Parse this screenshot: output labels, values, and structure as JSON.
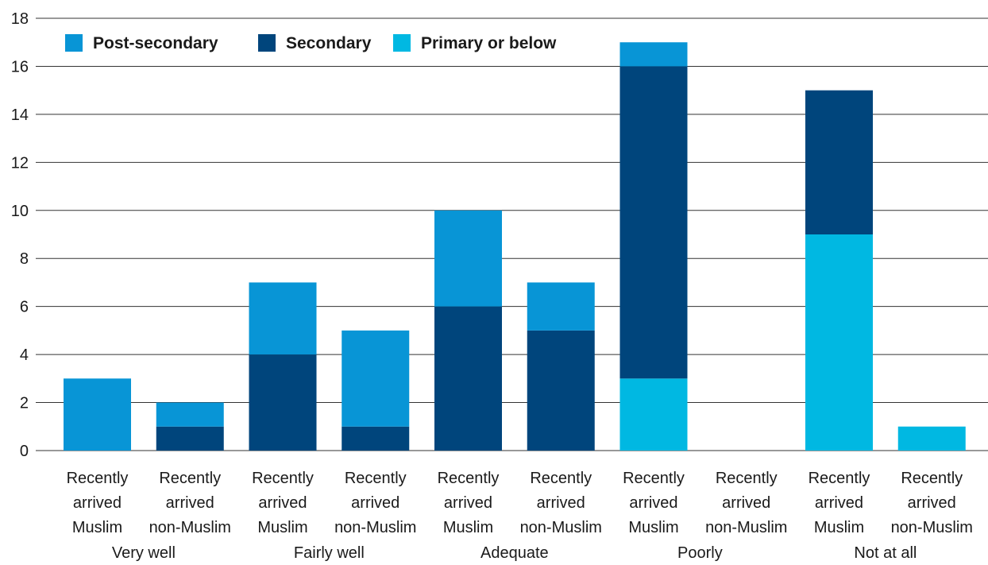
{
  "chart_data": {
    "type": "bar",
    "stacked": true,
    "ylim": [
      0,
      18
    ],
    "yticks": [
      0,
      2,
      4,
      6,
      8,
      10,
      12,
      14,
      16,
      18
    ],
    "grid": true,
    "legend_position": "top-left",
    "groups": [
      "Very well",
      "Fairly well",
      "Adequate",
      "Poorly",
      "Not at all"
    ],
    "categories": [
      "Recently arrived Muslim",
      "Recently arrived non-Muslim",
      "Recently arrived Muslim",
      "Recently arrived non-Muslim",
      "Recently arrived Muslim",
      "Recently arrived non-Muslim",
      "Recently arrived Muslim",
      "Recently arrived non-Muslim",
      "Recently arrived Muslim",
      "Recently arrived non-Muslim"
    ],
    "category_lines": [
      [
        "Recently",
        "arrived",
        "Muslim"
      ],
      [
        "Recently",
        "arrived",
        "non-Muslim"
      ]
    ],
    "series": [
      {
        "name": "Primary or below",
        "color": "#00b8e2",
        "values": [
          0,
          0,
          0,
          0,
          0,
          0,
          3,
          0,
          9,
          1
        ]
      },
      {
        "name": "Secondary",
        "color": "#00457c",
        "values": [
          0,
          1,
          4,
          1,
          6,
          5,
          13,
          0,
          6,
          0
        ]
      },
      {
        "name": "Post-secondary",
        "color": "#0895d6",
        "values": [
          3,
          1,
          3,
          4,
          4,
          2,
          1,
          0,
          0,
          0
        ]
      }
    ],
    "legend_order": [
      "Post-secondary",
      "Secondary",
      "Primary or below"
    ]
  }
}
